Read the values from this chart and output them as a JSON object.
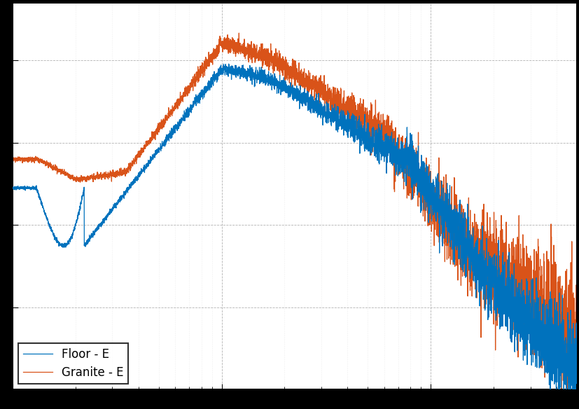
{
  "line1_label": "Floor - E",
  "line2_label": "Granite - E",
  "line1_color": "#0072BD",
  "line2_color": "#D95319",
  "background_color": "#ffffff",
  "fig_facecolor": "#000000",
  "grid_major_color": "#aaaaaa",
  "grid_minor_color": "#cccccc",
  "xlim": [
    1,
    500
  ],
  "ylim": [
    -9.0,
    -4.3
  ],
  "figsize": [
    8.28,
    5.84
  ],
  "dpi": 100,
  "legend_loc": "lower left",
  "linewidth": 0.9,
  "tick_labelsize": 11,
  "label_fontsize": 13
}
